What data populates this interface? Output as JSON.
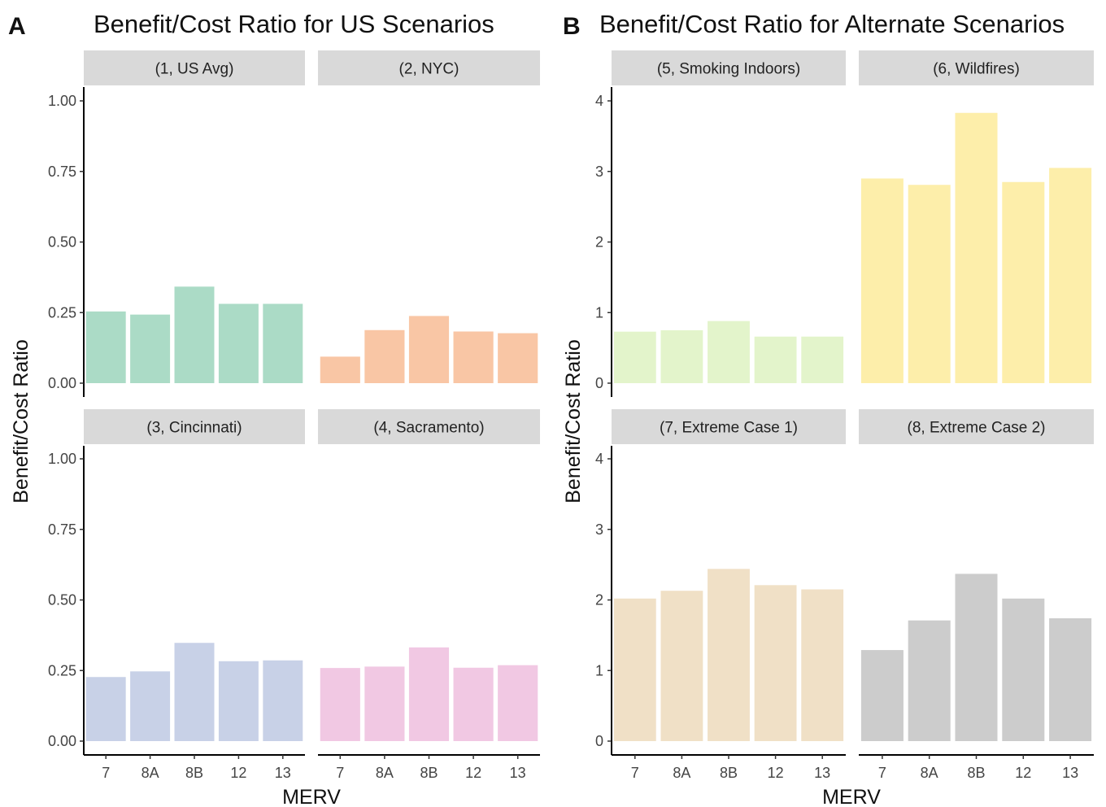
{
  "chart_data": [
    {
      "type": "bar",
      "panel_label": "A",
      "title": "Benefit/Cost Ratio for US Scenarios",
      "xlabel": "MERV",
      "ylabel": "Benefit/Cost Ratio",
      "ylim": [
        0,
        1.0
      ],
      "yticks": [
        "0.00",
        "0.25",
        "0.50",
        "0.75",
        "1.00"
      ],
      "categories": [
        "7",
        "8A",
        "8B",
        "12",
        "13"
      ],
      "grid": false,
      "facets": [
        {
          "label": "(1, US Avg)",
          "color": "#abdbc6",
          "values": [
            0.254,
            0.243,
            0.342,
            0.281,
            0.281
          ]
        },
        {
          "label": "(2, NYC)",
          "color": "#f9c6a5",
          "values": [
            0.094,
            0.188,
            0.238,
            0.183,
            0.177
          ]
        },
        {
          "label": "(3, Cincinnati)",
          "color": "#c8d1e7",
          "values": [
            0.227,
            0.247,
            0.348,
            0.283,
            0.286
          ]
        },
        {
          "label": "(4, Sacramento)",
          "color": "#f1c8e3",
          "values": [
            0.259,
            0.264,
            0.332,
            0.26,
            0.269
          ]
        }
      ]
    },
    {
      "type": "bar",
      "panel_label": "B",
      "title": "Benefit/Cost Ratio for Alternate Scenarios",
      "xlabel": "MERV",
      "ylabel": "Benefit/Cost Ratio",
      "ylim": [
        0,
        4
      ],
      "yticks": [
        "0",
        "1",
        "2",
        "3",
        "4"
      ],
      "categories": [
        "7",
        "8A",
        "8B",
        "12",
        "13"
      ],
      "grid": false,
      "facets": [
        {
          "label": "(5, Smoking Indoors)",
          "color": "#e3f4cb",
          "values": [
            0.73,
            0.75,
            0.88,
            0.66,
            0.66
          ]
        },
        {
          "label": "(6, Wildfires)",
          "color": "#fdeeaa",
          "values": [
            2.9,
            2.81,
            3.83,
            2.85,
            3.05
          ]
        },
        {
          "label": "(7, Extreme Case 1)",
          "color": "#f0e0c6",
          "values": [
            2.02,
            2.13,
            2.44,
            2.21,
            2.15
          ]
        },
        {
          "label": "(8, Extreme Case 2)",
          "color": "#cccccc",
          "values": [
            1.29,
            1.71,
            2.37,
            2.02,
            1.74
          ]
        }
      ]
    }
  ]
}
